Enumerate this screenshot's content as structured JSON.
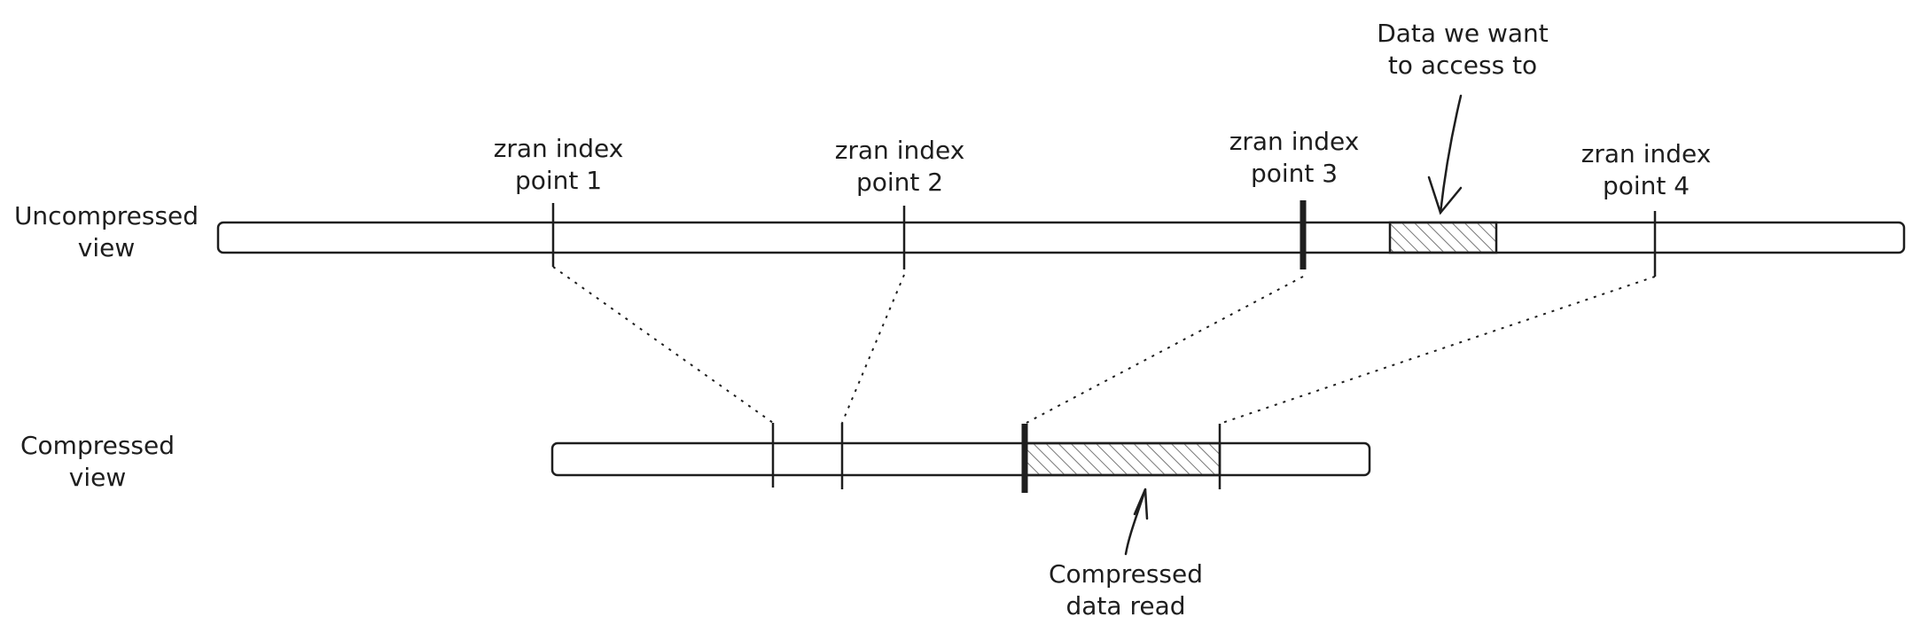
{
  "diagram": {
    "uncompressed_label": [
      "Uncompressed",
      "view"
    ],
    "compressed_label": [
      "Compressed",
      "view"
    ],
    "index_points": [
      [
        "zran index",
        "point 1"
      ],
      [
        "zran index",
        "point 2"
      ],
      [
        "zran index",
        "point 3"
      ],
      [
        "zran index",
        "point 4"
      ]
    ],
    "target_label": [
      "Data we want",
      "to access to"
    ],
    "read_label": [
      "Compressed",
      "data read"
    ]
  },
  "colors": {
    "stroke": "#1e1e1e",
    "hatch": "#777777"
  }
}
